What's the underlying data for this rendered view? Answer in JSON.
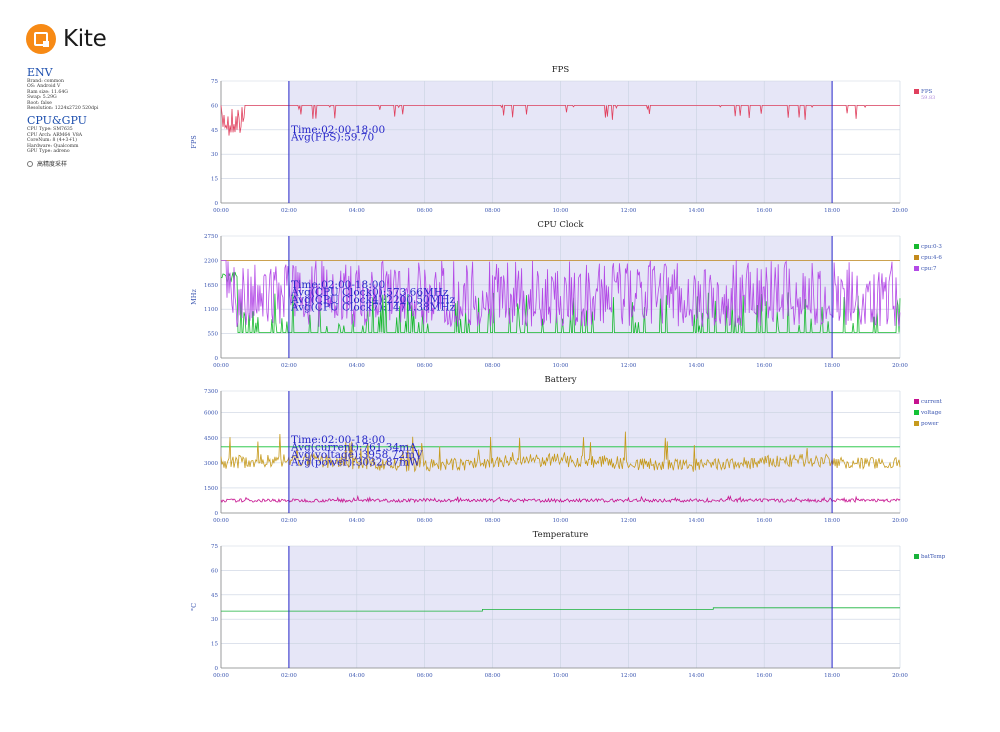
{
  "app": {
    "logo_text": "Kite"
  },
  "env": {
    "title": "ENV",
    "lines": [
      "Brand: common",
      "OS: Android V",
      "Ram size: 11.64G",
      "Swap: 5.29G",
      "Root: false",
      "Resolution: 1224x2720 520dpi"
    ]
  },
  "cpugpu": {
    "title": "CPU&GPU",
    "lines": [
      "CPU Type: SM7635",
      "CPU Arch: ARM64_V8A",
      "CoreNum: 8 (4+3+1)",
      "Hardware: Qualcomm",
      "GPU Type: adreno"
    ]
  },
  "sampling_label": "高精度采样",
  "selection": {
    "start": "02:00",
    "end": "18:00",
    "color": "#e6e6f7"
  },
  "x_ticks": [
    "00:00",
    "02:00",
    "04:00",
    "06:00",
    "08:00",
    "10:00",
    "12:00",
    "14:00",
    "16:00",
    "18:00",
    "20:00"
  ],
  "chart_data": [
    {
      "type": "line",
      "title": "FPS",
      "ylabel": "FPS",
      "ylim": [
        0,
        75
      ],
      "yticks": [
        0,
        15,
        30,
        45,
        60,
        75
      ],
      "series": [
        {
          "name": "FPS",
          "color": "#e0405e",
          "baseline": 60,
          "legend_value": "59.83"
        }
      ],
      "annotations": [
        "Time:02:00-18:00",
        "Avg(FPS):59.70"
      ]
    },
    {
      "type": "line",
      "title": "CPU Clock",
      "ylabel": "MHz",
      "ylim": [
        0,
        2750
      ],
      "yticks": [
        0,
        550,
        1100,
        1650,
        2200,
        2750
      ],
      "series": [
        {
          "name": "cpu:0-3",
          "color": "#16b82e"
        },
        {
          "name": "cpu:4-6",
          "color": "#c38a1c"
        },
        {
          "name": "cpu:7",
          "color": "#b34ae6"
        }
      ],
      "annotations": [
        "Time:02:00-18:00",
        "Avg(CPU Clock0):573.66MHz",
        "Avg(CPU Clock4):2200.50MHz",
        "Avg(CPU Clock7):1471.38MHz"
      ]
    },
    {
      "type": "line",
      "title": "Battery",
      "ylabel": "",
      "ylim": [
        0,
        7300
      ],
      "yticks": [
        0,
        1500,
        3000,
        4500,
        6000,
        7300
      ],
      "series": [
        {
          "name": "current",
          "color": "#c6118f",
          "baseline": 750
        },
        {
          "name": "voltage",
          "color": "#13c236",
          "baseline": 3960
        },
        {
          "name": "power",
          "color": "#c69a1d",
          "baseline": 3000
        }
      ],
      "annotations": [
        "Time:02:00-18:00",
        "Avg(current):761.34mA",
        "Avg(voltage):3958.72mV",
        "Avg(power):3032.87mW"
      ]
    },
    {
      "type": "line",
      "title": "Temperature",
      "ylabel": "°C",
      "ylim": [
        0,
        75
      ],
      "yticks": [
        0,
        15,
        30,
        45,
        60,
        75
      ],
      "series": [
        {
          "name": "batTemp",
          "color": "#18b23a",
          "steps": [
            [
              0,
              35
            ],
            [
              7.7,
              36
            ],
            [
              14.5,
              37
            ],
            [
              20,
              37
            ]
          ]
        }
      ],
      "annotations": []
    }
  ]
}
